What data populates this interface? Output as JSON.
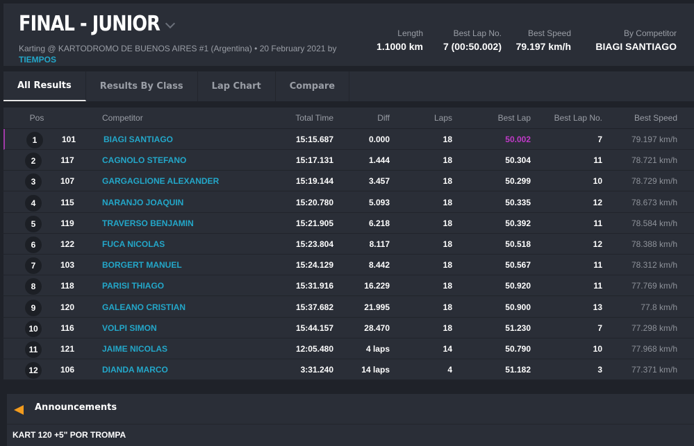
{
  "header": {
    "title": "FINAL - JUNIOR",
    "subtitle": "Karting @ KARTODROMO DE BUENOS AIRES #1 (Argentina) • 20 February 2021 by",
    "organizer": "TIEMPOS",
    "stats": [
      {
        "label": "Length",
        "value": "1.1000 km"
      },
      {
        "label": "Best Lap No.",
        "value": "7 (00:50.002)"
      },
      {
        "label": "Best Speed",
        "value": "79.197 km/h"
      },
      {
        "label": "By Competitor",
        "value": "BIAGI SANTIAGO"
      }
    ]
  },
  "tabs": [
    {
      "label": "All Results",
      "active": true
    },
    {
      "label": "Results By Class"
    },
    {
      "label": "Lap Chart"
    },
    {
      "label": "Compare"
    }
  ],
  "colors": {
    "accent": "#23a7c9",
    "best_lap": "#c03ac8",
    "announcement": "#f39c1e"
  },
  "table": {
    "headers": [
      "Pos",
      "",
      "Competitor",
      "Total Time",
      "Diff",
      "Laps",
      "Best Lap",
      "Best Lap No.",
      "Best Speed"
    ],
    "rows": [
      [
        "1",
        "101",
        "BIAGI SANTIAGO",
        "15:15.687",
        "0.000",
        "18",
        "50.002",
        "7",
        "79.197 km/h"
      ],
      [
        "2",
        "117",
        "CAGNOLO STEFANO",
        "15:17.131",
        "1.444",
        "18",
        "50.304",
        "11",
        "78.721 km/h"
      ],
      [
        "3",
        "107",
        "GARGAGLIONE ALEXANDER",
        "15:19.144",
        "3.457",
        "18",
        "50.299",
        "10",
        "78.729 km/h"
      ],
      [
        "4",
        "115",
        "NARANJO JOAQUIN",
        "15:20.780",
        "5.093",
        "18",
        "50.335",
        "12",
        "78.673 km/h"
      ],
      [
        "5",
        "119",
        "TRAVERSO BENJAMIN",
        "15:21.905",
        "6.218",
        "18",
        "50.392",
        "11",
        "78.584 km/h"
      ],
      [
        "6",
        "122",
        "FUCA NICOLAS",
        "15:23.804",
        "8.117",
        "18",
        "50.518",
        "12",
        "78.388 km/h"
      ],
      [
        "7",
        "103",
        "BORGERT MANUEL",
        "15:24.129",
        "8.442",
        "18",
        "50.567",
        "11",
        "78.312 km/h"
      ],
      [
        "8",
        "118",
        "PARISI THIAGO",
        "15:31.916",
        "16.229",
        "18",
        "50.920",
        "11",
        "77.769 km/h"
      ],
      [
        "9",
        "120",
        "GALEANO CRISTIAN",
        "15:37.682",
        "21.995",
        "18",
        "50.900",
        "13",
        "77.8 km/h"
      ],
      [
        "10",
        "116",
        "VOLPI SIMON",
        "15:44.157",
        "28.470",
        "18",
        "51.230",
        "7",
        "77.298 km/h"
      ],
      [
        "11",
        "121",
        "JAIME NICOLAS",
        "12:05.480",
        "4 laps",
        "14",
        "50.790",
        "10",
        "77.968 km/h"
      ],
      [
        "12",
        "106",
        "DIANDA MARCO",
        "3:31.240",
        "14 laps",
        "4",
        "51.182",
        "3",
        "77.371 km/h"
      ]
    ]
  },
  "announcements": {
    "title": "Announcements",
    "icon": "megaphone-icon",
    "items": [
      "KART 120 +5\" POR TROMPA"
    ]
  }
}
